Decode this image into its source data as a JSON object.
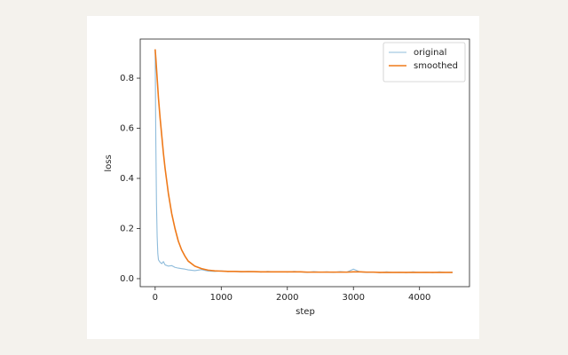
{
  "chart_data": {
    "type": "line",
    "xlabel": "step",
    "ylabel": "loss",
    "x": [
      0,
      10,
      20,
      30,
      40,
      50,
      75,
      100,
      125,
      150,
      200,
      250,
      300,
      350,
      400,
      450,
      500,
      600,
      700,
      800,
      900,
      1000,
      1100,
      1200,
      1300,
      1400,
      1500,
      1600,
      1700,
      1800,
      1900,
      2000,
      2100,
      2200,
      2300,
      2400,
      2500,
      2600,
      2700,
      2800,
      2900,
      3000,
      3100,
      3200,
      3300,
      3400,
      3500,
      3600,
      3700,
      3800,
      3900,
      4000,
      4100,
      4200,
      4300,
      4400,
      4500
    ],
    "series": [
      {
        "name": "original",
        "color": "#8fbcdb",
        "values": [
          0.915,
          0.55,
          0.3,
          0.17,
          0.1,
          0.075,
          0.065,
          0.06,
          0.068,
          0.055,
          0.05,
          0.052,
          0.045,
          0.042,
          0.04,
          0.038,
          0.035,
          0.032,
          0.036,
          0.03,
          0.029,
          0.031,
          0.028,
          0.03,
          0.027,
          0.029,
          0.028,
          0.026,
          0.029,
          0.027,
          0.028,
          0.026,
          0.029,
          0.027,
          0.025,
          0.028,
          0.026,
          0.027,
          0.025,
          0.028,
          0.026,
          0.038,
          0.027,
          0.025,
          0.026,
          0.024,
          0.027,
          0.025,
          0.026,
          0.024,
          0.027,
          0.025,
          0.026,
          0.024,
          0.027,
          0.025,
          0.026
        ]
      },
      {
        "name": "smoothed",
        "color": "#ef7a1a",
        "values": [
          0.915,
          0.88,
          0.84,
          0.8,
          0.76,
          0.72,
          0.64,
          0.57,
          0.5,
          0.44,
          0.34,
          0.26,
          0.2,
          0.15,
          0.115,
          0.09,
          0.07,
          0.05,
          0.04,
          0.034,
          0.031,
          0.03,
          0.029,
          0.029,
          0.028,
          0.028,
          0.028,
          0.027,
          0.027,
          0.027,
          0.027,
          0.027,
          0.027,
          0.027,
          0.026,
          0.026,
          0.026,
          0.026,
          0.026,
          0.026,
          0.026,
          0.027,
          0.027,
          0.026,
          0.026,
          0.025,
          0.025,
          0.025,
          0.025,
          0.025,
          0.025,
          0.025,
          0.025,
          0.025,
          0.025,
          0.025,
          0.025
        ]
      }
    ],
    "xlim": [
      -226,
      4756
    ],
    "xticks": [
      0,
      1000,
      2000,
      3000,
      4000
    ],
    "ylim": [
      -0.032,
      0.956
    ],
    "yticks": [
      {
        "value": 0,
        "label": "0.0"
      },
      0.2,
      0.4,
      0.6,
      0.8
    ],
    "legend": "upper right"
  }
}
